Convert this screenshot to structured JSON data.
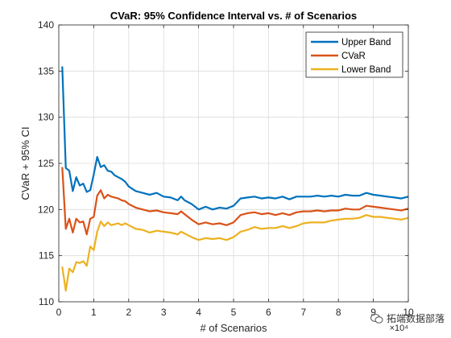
{
  "chart_data": {
    "type": "line",
    "title": "CVaR: 95% Confidence Interval vs. # of Scenarios",
    "xlabel": "# of Scenarios",
    "ylabel": "CVaR + 95% CI",
    "x_exponent_label": "×10⁴",
    "xlim": [
      0,
      10
    ],
    "ylim": [
      110,
      140
    ],
    "x_ticks": [
      0,
      1,
      2,
      3,
      4,
      5,
      6,
      7,
      8,
      9,
      10
    ],
    "y_ticks": [
      110,
      115,
      120,
      125,
      130,
      135,
      140
    ],
    "grid": true,
    "legend_position": "top-right",
    "x": [
      0.1,
      0.2,
      0.3,
      0.4,
      0.5,
      0.6,
      0.7,
      0.8,
      0.9,
      1.0,
      1.1,
      1.2,
      1.3,
      1.4,
      1.5,
      1.6,
      1.7,
      1.8,
      1.9,
      2.0,
      2.2,
      2.4,
      2.6,
      2.8,
      3.0,
      3.2,
      3.4,
      3.5,
      3.6,
      3.8,
      4.0,
      4.2,
      4.4,
      4.6,
      4.8,
      5.0,
      5.2,
      5.4,
      5.6,
      5.8,
      6.0,
      6.2,
      6.4,
      6.6,
      6.8,
      7.0,
      7.2,
      7.4,
      7.6,
      7.8,
      8.0,
      8.2,
      8.4,
      8.6,
      8.8,
      9.0,
      9.2,
      9.4,
      9.6,
      9.8,
      10.0
    ],
    "series": [
      {
        "name": "Upper Band",
        "color": "#0072BD",
        "values": [
          135.5,
          124.5,
          124.2,
          122.0,
          123.5,
          122.6,
          122.8,
          121.9,
          122.1,
          123.8,
          125.7,
          124.6,
          124.8,
          124.2,
          124.1,
          123.7,
          123.5,
          123.3,
          123.0,
          122.5,
          122.0,
          121.8,
          121.6,
          121.8,
          121.4,
          121.3,
          121.0,
          121.4,
          121.0,
          120.6,
          120.0,
          120.3,
          120.0,
          120.2,
          120.1,
          120.4,
          121.2,
          121.3,
          121.4,
          121.2,
          121.3,
          121.2,
          121.4,
          121.1,
          121.4,
          121.4,
          121.4,
          121.5,
          121.4,
          121.5,
          121.4,
          121.6,
          121.5,
          121.5,
          121.8,
          121.6,
          121.5,
          121.4,
          121.3,
          121.2,
          121.4
        ]
      },
      {
        "name": "CVaR",
        "color": "#D95319",
        "values": [
          124.6,
          117.9,
          119.0,
          117.5,
          119.0,
          118.6,
          118.7,
          117.3,
          119.0,
          119.2,
          121.5,
          122.1,
          121.2,
          121.6,
          121.4,
          121.3,
          121.2,
          121.0,
          120.9,
          120.6,
          120.2,
          120.0,
          119.8,
          119.9,
          119.7,
          119.6,
          119.5,
          119.8,
          119.5,
          118.9,
          118.4,
          118.6,
          118.4,
          118.5,
          118.3,
          118.6,
          119.4,
          119.6,
          119.7,
          119.5,
          119.6,
          119.4,
          119.6,
          119.4,
          119.7,
          119.8,
          119.8,
          119.9,
          119.8,
          119.9,
          119.9,
          120.1,
          120.0,
          120.0,
          120.4,
          120.3,
          120.2,
          120.1,
          120.0,
          119.9,
          120.1
        ]
      },
      {
        "name": "Lower Band",
        "color": "#EDB120",
        "values": [
          113.8,
          111.2,
          113.6,
          113.2,
          114.3,
          114.2,
          114.4,
          113.9,
          116.0,
          115.6,
          117.6,
          118.7,
          118.2,
          118.6,
          118.3,
          118.4,
          118.5,
          118.3,
          118.5,
          118.3,
          117.9,
          117.8,
          117.5,
          117.7,
          117.6,
          117.5,
          117.3,
          117.6,
          117.4,
          117.0,
          116.7,
          116.9,
          116.8,
          116.9,
          116.7,
          117.0,
          117.6,
          117.8,
          118.1,
          117.9,
          118.0,
          118.0,
          118.2,
          118.0,
          118.2,
          118.5,
          118.6,
          118.6,
          118.6,
          118.8,
          118.9,
          119.0,
          119.0,
          119.1,
          119.4,
          119.2,
          119.2,
          119.1,
          119.0,
          118.9,
          119.1
        ]
      }
    ]
  },
  "watermark": {
    "text": "拓端数据部落",
    "icon": "wechat-icon"
  }
}
